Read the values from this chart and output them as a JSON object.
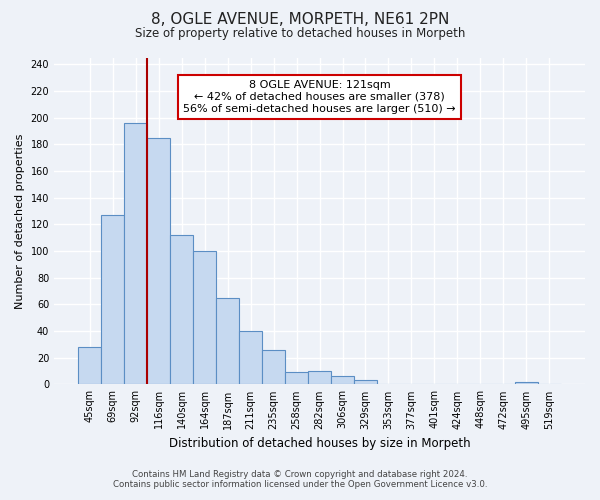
{
  "title": "8, OGLE AVENUE, MORPETH, NE61 2PN",
  "subtitle": "Size of property relative to detached houses in Morpeth",
  "xlabel": "Distribution of detached houses by size in Morpeth",
  "ylabel": "Number of detached properties",
  "bar_labels": [
    "45sqm",
    "69sqm",
    "92sqm",
    "116sqm",
    "140sqm",
    "164sqm",
    "187sqm",
    "211sqm",
    "235sqm",
    "258sqm",
    "282sqm",
    "306sqm",
    "329sqm",
    "353sqm",
    "377sqm",
    "401sqm",
    "424sqm",
    "448sqm",
    "472sqm",
    "495sqm",
    "519sqm"
  ],
  "bar_values": [
    28,
    127,
    196,
    185,
    112,
    100,
    65,
    40,
    26,
    9,
    10,
    6,
    3,
    0,
    0,
    0,
    0,
    0,
    0,
    2,
    0
  ],
  "bar_color": "#c6d9f0",
  "bar_edge_color": "#5b8ec4",
  "annotation_box_text": "8 OGLE AVENUE: 121sqm\n← 42% of detached houses are smaller (378)\n56% of semi-detached houses are larger (510) →",
  "annotation_box_color": "#ffffff",
  "annotation_box_edge_color": "#cc0000",
  "vline_color": "#aa0000",
  "ylim": [
    0,
    245
  ],
  "yticks": [
    0,
    20,
    40,
    60,
    80,
    100,
    120,
    140,
    160,
    180,
    200,
    220,
    240
  ],
  "footer_line1": "Contains HM Land Registry data © Crown copyright and database right 2024.",
  "footer_line2": "Contains public sector information licensed under the Open Government Licence v3.0.",
  "background_color": "#eef2f8",
  "grid_color": "#ffffff"
}
